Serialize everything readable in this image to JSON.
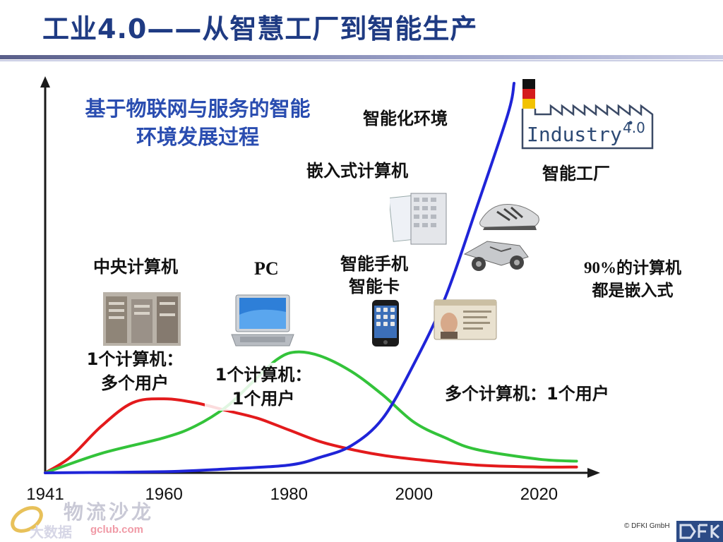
{
  "slide": {
    "title": "工业4.0——从智慧工厂到智能生产",
    "subtitle_line1": "基于物联网与服务的智能",
    "subtitle_line2": "环境发展过程"
  },
  "labels": {
    "mainframe": "中央计算机",
    "mainframe_ratio_1": "1个计算机：",
    "mainframe_ratio_2": "多个用户",
    "pc": "PC",
    "pc_ratio_1": "1个计算机：",
    "pc_ratio_2": "1个用户",
    "smartphone_1": "智能手机",
    "smartphone_2": "智能卡",
    "embedded": "嵌入式计算机",
    "smart_env": "智能化环境",
    "smart_factory": "智能工厂",
    "embedded_share_1": "90%的计算机",
    "embedded_share_2": "都是嵌入式",
    "many_to_one": "多个计算机：1个用户"
  },
  "logo": {
    "text": "Industry",
    "version": "4.0"
  },
  "watermark": {
    "brand": "物流沙龙",
    "url": "gclub.com",
    "left": "大数据"
  },
  "copyright": "© DFKI GmbH",
  "chart_data": {
    "type": "line",
    "xlim": [
      1941,
      2030
    ],
    "ylim": [
      0,
      100
    ],
    "x_ticks": [
      1941,
      1960,
      1980,
      2000,
      2020
    ],
    "grid": false,
    "legend": "none",
    "series": [
      {
        "color": "#e31a1c",
        "points": [
          [
            1941,
            0
          ],
          [
            1945,
            4
          ],
          [
            1950,
            12
          ],
          [
            1955,
            18
          ],
          [
            1960,
            19
          ],
          [
            1965,
            18
          ],
          [
            1970,
            16
          ],
          [
            1975,
            14
          ],
          [
            1980,
            11
          ],
          [
            1985,
            8
          ],
          [
            1990,
            6
          ],
          [
            1995,
            4.5
          ],
          [
            2000,
            3.5
          ],
          [
            2010,
            2
          ],
          [
            2020,
            1.5
          ],
          [
            2026,
            1.5
          ]
        ]
      },
      {
        "color": "#33c33a",
        "points": [
          [
            1941,
            0
          ],
          [
            1950,
            5
          ],
          [
            1960,
            9
          ],
          [
            1965,
            12
          ],
          [
            1970,
            17
          ],
          [
            1974,
            23
          ],
          [
            1978,
            29
          ],
          [
            1981,
            31
          ],
          [
            1985,
            30
          ],
          [
            1990,
            26
          ],
          [
            1995,
            20
          ],
          [
            2000,
            13
          ],
          [
            2005,
            9
          ],
          [
            2010,
            6
          ],
          [
            2020,
            3.5
          ],
          [
            2026,
            3
          ]
        ]
      },
      {
        "color": "#1f24d8",
        "points": [
          [
            1941,
            0
          ],
          [
            1960,
            0.3
          ],
          [
            1970,
            1
          ],
          [
            1980,
            2
          ],
          [
            1985,
            4
          ],
          [
            1990,
            7
          ],
          [
            1995,
            14
          ],
          [
            2000,
            28
          ],
          [
            2005,
            45
          ],
          [
            2010,
            68
          ],
          [
            2015,
            92
          ],
          [
            2016,
            100
          ]
        ]
      }
    ]
  }
}
